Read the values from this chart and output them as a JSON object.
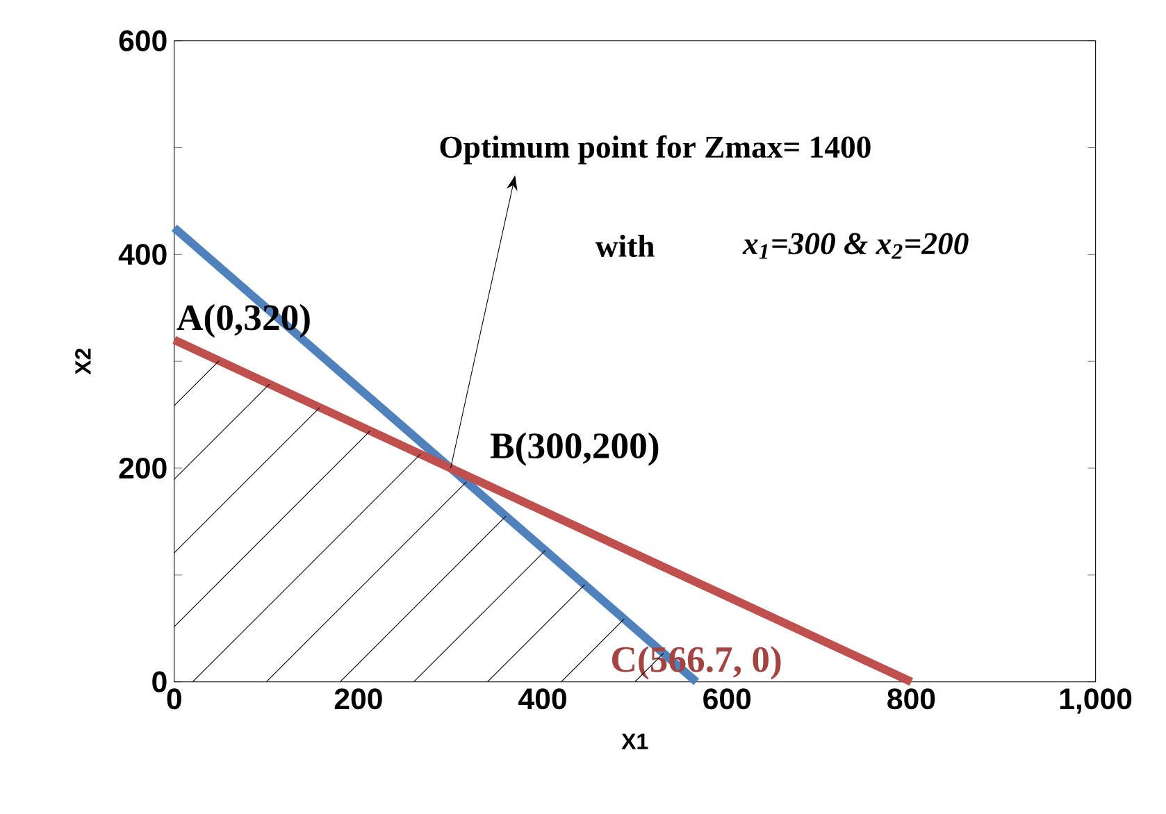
{
  "chart_data": {
    "type": "line",
    "xlabel": "X1",
    "ylabel": "X2",
    "xlim": [
      0,
      1000
    ],
    "ylim": [
      0,
      600
    ],
    "xticks": [
      0,
      200,
      400,
      600,
      800,
      {
        "value": 1000,
        "label": "1,000"
      }
    ],
    "yticks": [
      0,
      {
        "value": 100,
        "label": null
      },
      200,
      {
        "value": 300,
        "label": null
      },
      400,
      {
        "value": 500,
        "label": null
      },
      600
    ],
    "series": [
      {
        "color": "#4f81bd",
        "x": [
          0,
          566.7
        ],
        "values": [
          425,
          0
        ]
      },
      {
        "color": "#c0504d",
        "x": [
          0,
          800
        ],
        "values": [
          320,
          0
        ]
      }
    ],
    "annotations": [
      {
        "text": "Optimum point for   Zmax= 1400",
        "x": 300,
        "y": 200
      },
      "with",
      "x$_{1}$=300 & x$_{2}$=200",
      {
        "text": "A(0,320)",
        "x": 0,
        "y": 320
      },
      {
        "text": "B(300,200)",
        "x": 300,
        "y": 200
      },
      {
        "text": "C(566.7, 0)",
        "x": 566.7,
        "y": 0
      }
    ],
    "grid": false,
    "marker": "none",
    "line_style": "solid"
  }
}
